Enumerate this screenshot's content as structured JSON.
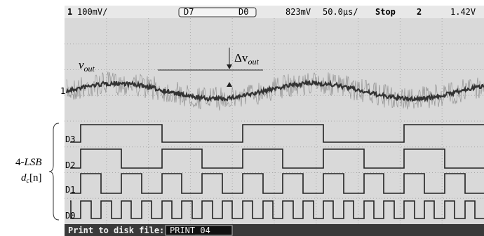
{
  "status_bar": {
    "channel": "1",
    "scale": "100mV/",
    "digital_high": "D7",
    "digital_low": "D0",
    "trigger_level": "823mV",
    "timebase": "50.0µs/",
    "run_state": "Stop",
    "trigger_channel": "2",
    "trigger_voltage": "1.42V"
  },
  "annotations": {
    "vout": "v",
    "vout_sub": "out",
    "delta": "Δv",
    "delta_sub": "out"
  },
  "left_labels": {
    "lsb_prefix": "4-",
    "lsb": "LSB",
    "dc": "d",
    "dc_sub": "c",
    "dc_index": "[n]"
  },
  "channels": {
    "analog": "1",
    "d3": "D3",
    "d2": "D2",
    "d1": "D1",
    "d0": "D0"
  },
  "footer": {
    "label": "Print to disk file:",
    "file": "PRINT_04"
  }
}
